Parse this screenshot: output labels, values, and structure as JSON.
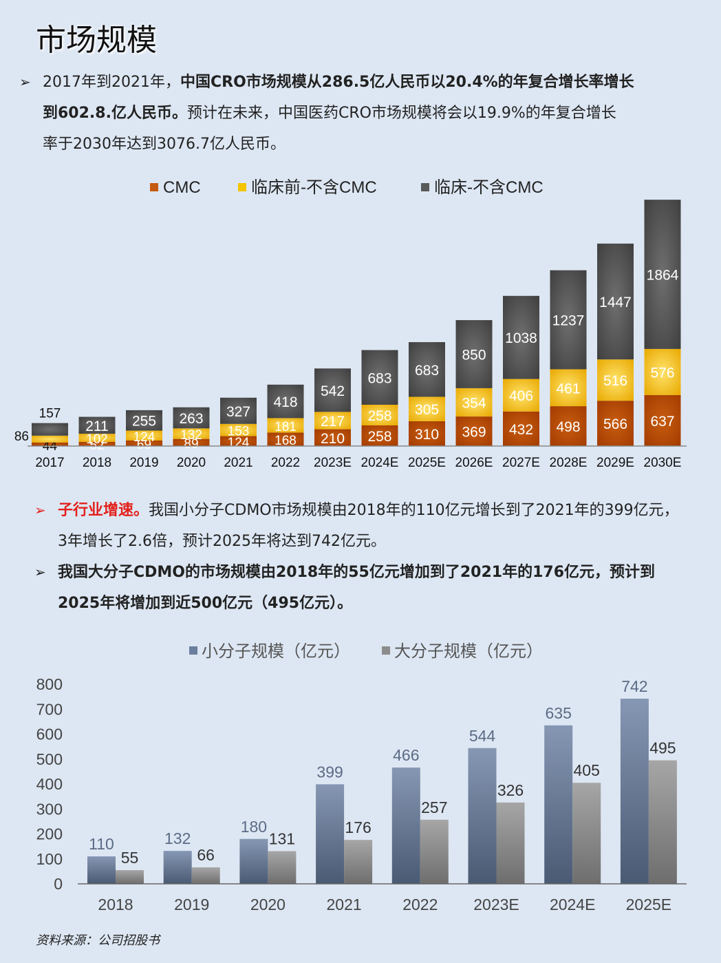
{
  "page": {
    "title": "市场规模",
    "source": "资料来源：公司招股书"
  },
  "bullets": {
    "b1": {
      "l1a": "2017年到2021年，",
      "l1b": "中国CRO市场规模从286.5亿人民币以20.4%的年复合增长率增长",
      "l2a": "到602.8.亿人民币。",
      "l2b": "预计在未来，中国医药CRO市场规模将会以19.9%的年复合增长",
      "l3": "率于2030年达到3076.7亿人民币。"
    },
    "b2": {
      "lead": "子行业增速。",
      "l1": "我国小分子CDMO市场规模由2018年的110亿元增长到了2021年的399亿元，",
      "l2": "3年增长了2.6倍，预计2025年将达到742亿元。"
    },
    "b3": {
      "l1": "我国大分子CDMO的市场规模由2018年的55亿元增加到了2021年的176亿元，预计到",
      "l2": "2025年将增加到近500亿元（495亿元）。"
    }
  },
  "chart_data": [
    {
      "type": "bar",
      "stacked": true,
      "categories": [
        "2017",
        "2018",
        "2019",
        "2020",
        "2021",
        "2022",
        "2023E",
        "2024E",
        "2025E",
        "2026E",
        "2027E",
        "2028E",
        "2029E",
        "2030E"
      ],
      "series": [
        {
          "name": "CMC",
          "values": [
            44,
            52,
            69,
            89,
            124,
            168,
            210,
            258,
            310,
            369,
            432,
            498,
            566,
            637
          ],
          "color": "#c55a11"
        },
        {
          "name": "临床前-不含CMC",
          "values": [
            86,
            102,
            124,
            132,
            153,
            181,
            217,
            258,
            305,
            354,
            406,
            461,
            516,
            576
          ],
          "color": "#f5c400"
        },
        {
          "name": "临床-不含CMC",
          "values": [
            157,
            211,
            255,
            263,
            327,
            418,
            542,
            683,
            683,
            850,
            1038,
            1237,
            1447,
            1864
          ],
          "color": "#595959"
        }
      ],
      "legend": "top"
    },
    {
      "type": "bar",
      "categories": [
        "2018",
        "2019",
        "2020",
        "2021",
        "2022",
        "2023E",
        "2024E",
        "2025E"
      ],
      "series": [
        {
          "name": "小分子规模（亿元）",
          "values": [
            110,
            132,
            180,
            399,
            466,
            544,
            635,
            742
          ],
          "color": "#6b7f9e"
        },
        {
          "name": "大分子规模（亿元）",
          "values": [
            55,
            66,
            131,
            176,
            257,
            326,
            405,
            495
          ],
          "color": "#8c8c8c"
        }
      ],
      "yticks": [
        "0",
        "100",
        "200",
        "300",
        "400",
        "500",
        "600",
        "700",
        "800"
      ],
      "ylim": [
        0,
        800
      ],
      "legend": "top"
    }
  ]
}
